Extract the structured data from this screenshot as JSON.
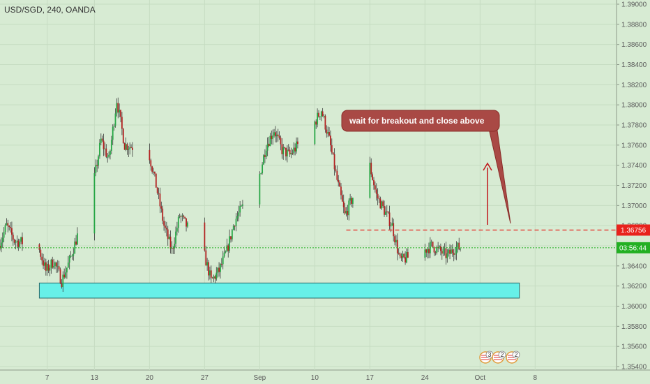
{
  "chart_data": {
    "type": "candlestick",
    "title": "USD/SGD, 240, OANDA",
    "y_axis": {
      "min": 1.354,
      "max": 1.39,
      "ticks": [
        "1.39000",
        "1.38800",
        "1.38600",
        "1.38400",
        "1.38200",
        "1.38000",
        "1.37800",
        "1.37600",
        "1.37400",
        "1.37200",
        "1.37000",
        "1.36800",
        "1.36600",
        "1.36400",
        "1.36200",
        "1.36000",
        "1.35800",
        "1.35600",
        "1.35400"
      ],
      "tick_values": [
        1.39,
        1.388,
        1.386,
        1.384,
        1.382,
        1.38,
        1.378,
        1.376,
        1.374,
        1.372,
        1.37,
        1.368,
        1.366,
        1.364,
        1.362,
        1.36,
        1.358,
        1.356,
        1.354
      ]
    },
    "x_axis": {
      "labels": [
        "7",
        "13",
        "20",
        "27",
        "Sep",
        "10",
        "17",
        "24",
        "Oct",
        "8"
      ],
      "dates": [
        "2018-08-07",
        "2018-08-13",
        "2018-08-20",
        "2018-08-27",
        "2018-09-03",
        "2018-09-10",
        "2018-09-17",
        "2018-09-24",
        "2018-10-01",
        "2018-10-08"
      ],
      "range": [
        "2018-08-01",
        "2018-10-14"
      ]
    },
    "price_path": [
      [
        "2018-08-01",
        1.366
      ],
      [
        "2018-08-02",
        1.368
      ],
      [
        "2018-08-03",
        1.3665
      ],
      [
        "2018-08-06",
        1.366
      ],
      [
        "2018-08-07",
        1.3635
      ],
      [
        "2018-08-08",
        1.3645
      ],
      [
        "2018-08-09",
        1.3625
      ],
      [
        "2018-08-10",
        1.3645
      ],
      [
        "2018-08-13",
        1.372
      ],
      [
        "2018-08-14",
        1.3765
      ],
      [
        "2018-08-15",
        1.3745
      ],
      [
        "2018-08-16",
        1.3805
      ],
      [
        "2018-08-17",
        1.376
      ],
      [
        "2018-08-20",
        1.3755
      ],
      [
        "2018-08-21",
        1.372
      ],
      [
        "2018-08-22",
        1.368
      ],
      [
        "2018-08-23",
        1.3655
      ],
      [
        "2018-08-24",
        1.369
      ],
      [
        "2018-08-27",
        1.3655
      ],
      [
        "2018-08-28",
        1.3625
      ],
      [
        "2018-08-29",
        1.3635
      ],
      [
        "2018-08-30",
        1.3655
      ],
      [
        "2018-08-31",
        1.3685
      ],
      [
        "2018-09-03",
        1.3725
      ],
      [
        "2018-09-04",
        1.376
      ],
      [
        "2018-09-05",
        1.3775
      ],
      [
        "2018-09-06",
        1.3755
      ],
      [
        "2018-09-07",
        1.375
      ],
      [
        "2018-09-10",
        1.378
      ],
      [
        "2018-09-11",
        1.3795
      ],
      [
        "2018-09-12",
        1.3765
      ],
      [
        "2018-09-13",
        1.3725
      ],
      [
        "2018-09-14",
        1.369
      ],
      [
        "2018-09-17",
        1.3745
      ],
      [
        "2018-09-18",
        1.371
      ],
      [
        "2018-09-19",
        1.3695
      ],
      [
        "2018-09-20",
        1.368
      ],
      [
        "2018-09-21",
        1.3645
      ],
      [
        "2018-09-24",
        1.3655
      ],
      [
        "2018-09-25",
        1.366
      ],
      [
        "2018-09-26",
        1.3655
      ],
      [
        "2018-09-27",
        1.365
      ],
      [
        "2018-09-28",
        1.3658
      ]
    ],
    "last_price": {
      "label": "1.36756",
      "value": 1.36756,
      "color": "#e8221c"
    },
    "countdown": {
      "label": "03:56:44",
      "value": 1.3658,
      "color": "#22b022"
    },
    "resistance_level": {
      "value": 1.36756,
      "color": "#e8221c",
      "style": "dashed",
      "from": "2018-09-14",
      "to": "2018-10-14"
    },
    "current_price_line": {
      "value": 1.3658,
      "color": "#22b022",
      "style": "dotted"
    },
    "support_zone": {
      "low": 1.3608,
      "high": 1.3623,
      "from": "2018-08-06",
      "to": "2018-10-06",
      "color": "#67f0e8"
    },
    "annotation": {
      "text": "wait for breakout and close above",
      "box_color": "#a94945",
      "arrow_color": "#c0151a"
    },
    "event_badges": [
      "3",
      "2",
      "2"
    ],
    "colors": {
      "up": "#27a645",
      "down": "#b22222",
      "background": "#d7ebd3"
    },
    "grid": true
  }
}
